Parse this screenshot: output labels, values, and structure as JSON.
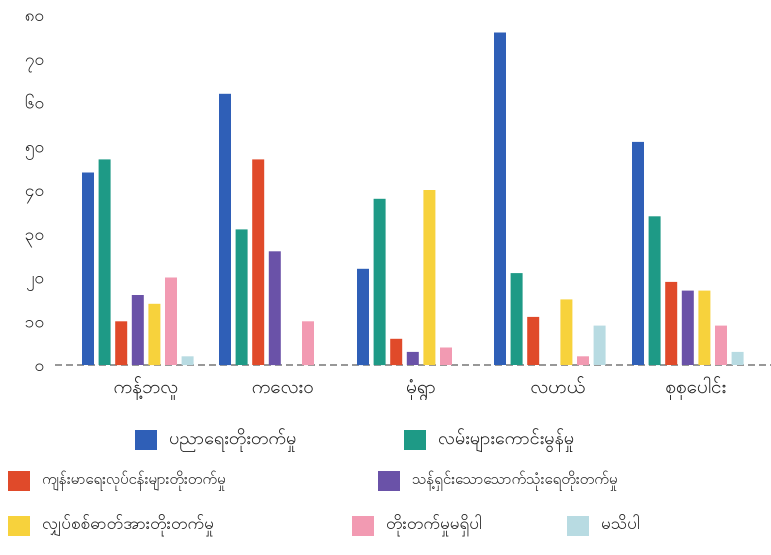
{
  "chart_data": {
    "type": "bar",
    "categories": [
      "ကန့်ဘလူ",
      "ကလေးဝ",
      "မုံရွာ",
      "လဟယ်",
      "စုစုပေါင်း"
    ],
    "y_tick_labels": [
      "၀",
      "၁၀",
      "၂၀",
      "၃၀",
      "၄၀",
      "၅၀",
      "၆၀",
      "၇၀",
      "၈၀"
    ],
    "ylim": [
      0,
      80
    ],
    "grid": false,
    "legend_position": "bottom",
    "series": [
      {
        "name": "ပညာရေးတိုးတက်မှု",
        "color": "#2f5fb7",
        "values": [
          44,
          62,
          22,
          76,
          51
        ]
      },
      {
        "name": "လမ်းများကောင်းမွန်မှု",
        "color": "#1e9a86",
        "values": [
          47,
          31,
          38,
          21,
          34
        ]
      },
      {
        "name": "ကျန်းမာရေးလုပ်ငန်းများတိုးတက်မှု",
        "color": "#e04a2a",
        "values": [
          10,
          47,
          6,
          11,
          19
        ]
      },
      {
        "name": "သန့်ရှင်းသောသောက်သုံးရေတိုးတက်မှု",
        "color": "#6a52a8",
        "values": [
          16,
          26,
          3,
          0,
          17
        ]
      },
      {
        "name": "လျှပ်စစ်ဓာတ်အားတိုးတက်မှု",
        "color": "#f7d23c",
        "values": [
          14,
          0,
          40,
          15,
          17
        ]
      },
      {
        "name": "တိုးတက်မှုမရှိပါ",
        "color": "#f29ab2",
        "values": [
          20,
          10,
          4,
          2,
          9
        ]
      },
      {
        "name": "မသိပါ",
        "color": "#b8dbe2",
        "values": [
          2,
          0,
          0,
          9,
          3
        ]
      }
    ]
  }
}
